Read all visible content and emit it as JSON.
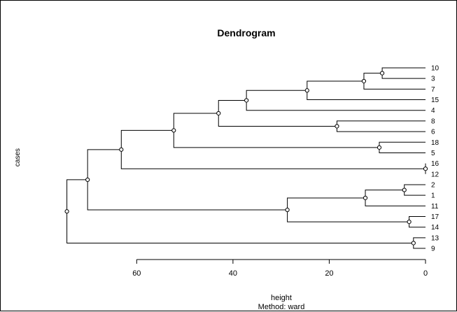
{
  "chart_data": {
    "type": "dendrogram",
    "title": "Dendrogram",
    "ylabel": "cases",
    "xlabel": "height",
    "subtitle": "Method: ward",
    "x_ticks": [
      60,
      40,
      20,
      0
    ],
    "xlim": [
      0,
      60
    ],
    "leaves": [
      "10",
      "3",
      "7",
      "15",
      "4",
      "8",
      "6",
      "18",
      "5",
      "16",
      "12",
      "2",
      "1",
      "11",
      "17",
      "14",
      "13",
      "9"
    ],
    "merges": [
      {
        "id": "A",
        "children": [
          "10",
          "3"
        ],
        "height": 9.0
      },
      {
        "id": "B",
        "children": [
          "A",
          "7"
        ],
        "height": 12.8
      },
      {
        "id": "C",
        "children": [
          "B",
          "15"
        ],
        "height": 24.6
      },
      {
        "id": "D",
        "children": [
          "C",
          "4"
        ],
        "height": 37.2
      },
      {
        "id": "E",
        "children": [
          "8",
          "6"
        ],
        "height": 18.4
      },
      {
        "id": "F",
        "children": [
          "D",
          "E"
        ],
        "height": 43.0
      },
      {
        "id": "G",
        "children": [
          "18",
          "5"
        ],
        "height": 9.6
      },
      {
        "id": "H",
        "children": [
          "F",
          "G"
        ],
        "height": 52.3
      },
      {
        "id": "I",
        "children": [
          "16",
          "12"
        ],
        "height": 0.0
      },
      {
        "id": "J",
        "children": [
          "H",
          "I"
        ],
        "height": 63.2
      },
      {
        "id": "K",
        "children": [
          "2",
          "1"
        ],
        "height": 4.4
      },
      {
        "id": "L",
        "children": [
          "K",
          "11"
        ],
        "height": 12.5
      },
      {
        "id": "M",
        "children": [
          "17",
          "14"
        ],
        "height": 3.4
      },
      {
        "id": "N",
        "children": [
          "L",
          "M"
        ],
        "height": 28.7
      },
      {
        "id": "O",
        "children": [
          "J",
          "N"
        ],
        "height": 70.2
      },
      {
        "id": "P",
        "children": [
          "13",
          "9"
        ],
        "height": 2.5
      },
      {
        "id": "Q",
        "children": [
          "O",
          "P"
        ],
        "height": 74.5
      }
    ]
  }
}
